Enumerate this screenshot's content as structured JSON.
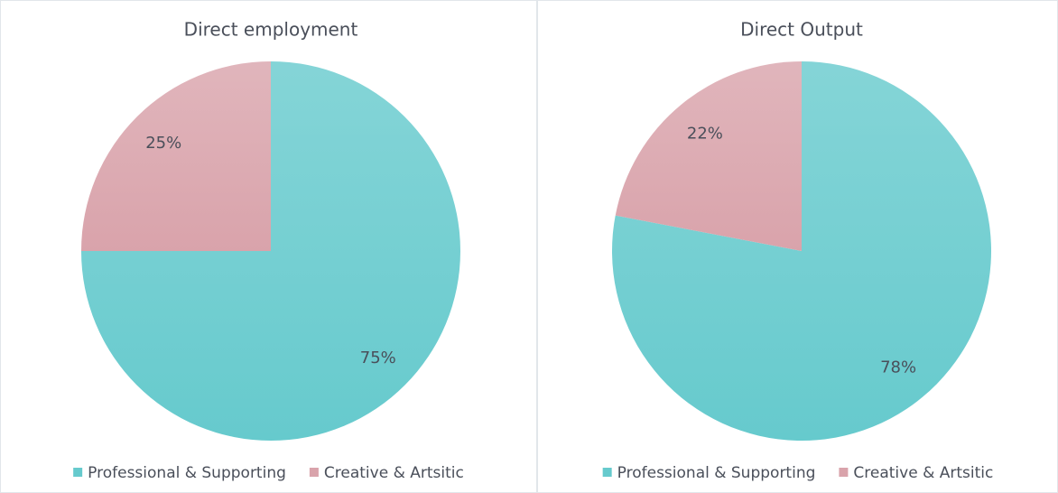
{
  "chart_data": [
    {
      "type": "pie",
      "title": "Direct employment",
      "categories": [
        "Professional & Supporting",
        "Creative & Artsitic"
      ],
      "values": [
        75,
        25
      ],
      "value_labels": [
        "75%",
        "25%"
      ],
      "colors": [
        "#66cacd",
        "#d9a3ab"
      ],
      "legend": "bottom"
    },
    {
      "type": "pie",
      "title": "Direct Output",
      "categories": [
        "Professional & Supporting",
        "Creative & Artsitic"
      ],
      "values": [
        78,
        22
      ],
      "value_labels": [
        "78%",
        "22%"
      ],
      "colors": [
        "#66cacd",
        "#d9a3ab"
      ],
      "legend": "bottom"
    }
  ]
}
